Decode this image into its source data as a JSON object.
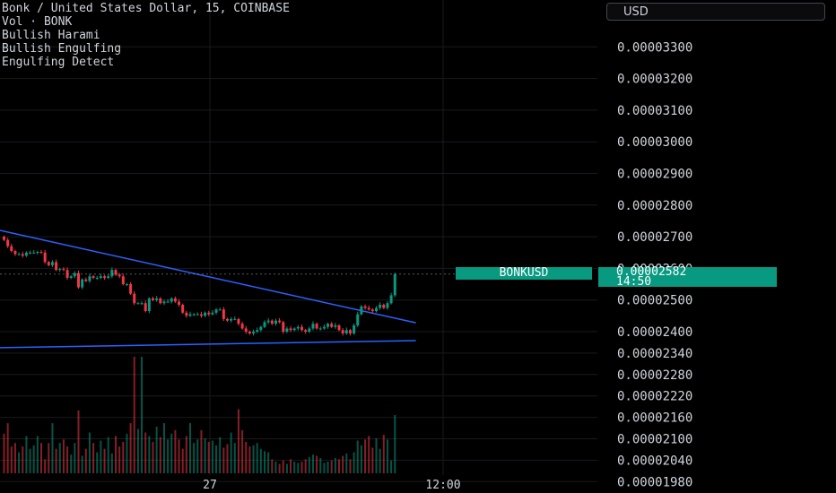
{
  "legend": {
    "title": "Bonk / United States Dollar, 15, COINBASE",
    "lines": [
      "Vol · BONK",
      "Bullish Harami",
      "Bullish Engulfing",
      "Engulfing Detect"
    ]
  },
  "currency_button": "USD",
  "last_price": {
    "symbol": "BONKUSD",
    "value": "0.00002582",
    "countdown": "14:50"
  },
  "colors": {
    "up": "#089981",
    "down": "#f23645",
    "trendline": "#2962ff",
    "text": "#d1d4dc"
  },
  "chart_data": {
    "type": "candlestick",
    "x_labels": [
      "27",
      "12:00"
    ],
    "y_tick_labels": [
      "0.00003300",
      "0.00003200",
      "0.00003100",
      "0.00003000",
      "0.00002900",
      "0.00002800",
      "0.00002700",
      "0.00002600",
      "0.00002500",
      "0.00002400",
      "0.00002340",
      "0.00002280",
      "0.00002220",
      "0.00002160",
      "0.00002100",
      "0.00002040",
      "0.00001980"
    ],
    "close": [
      2.69e-05,
      2.67e-05,
      2.655e-05,
      2.645e-05,
      2.645e-05,
      2.64e-05,
      2.65e-05,
      2.65e-05,
      2.65e-05,
      2.652e-05,
      2.65e-05,
      2.62e-05,
      2.61e-05,
      2.62e-05,
      2.595e-05,
      2.598e-05,
      2.595e-05,
      2.57e-05,
      2.575e-05,
      2.585e-05,
      2.54e-05,
      2.565e-05,
      2.56e-05,
      2.575e-05,
      2.57e-05,
      2.57e-05,
      2.575e-05,
      2.57e-05,
      2.575e-05,
      2.595e-05,
      2.58e-05,
      2.575e-05,
      2.55e-05,
      2.55e-05,
      2.52e-05,
      2.49e-05,
      2.49e-05,
      2.49e-05,
      2.465e-05,
      2.505e-05,
      2.5e-05,
      2.505e-05,
      2.49e-05,
      2.495e-05,
      2.495e-05,
      2.505e-05,
      2.495e-05,
      2.485e-05,
      2.46e-05,
      2.45e-05,
      2.455e-05,
      2.455e-05,
      2.455e-05,
      2.45e-05,
      2.46e-05,
      2.455e-05,
      2.46e-05,
      2.47e-05,
      2.47e-05,
      2.44e-05,
      2.435e-05,
      2.44e-05,
      2.44e-05,
      2.425e-05,
      2.41e-05,
      2.4e-05,
      2.395e-05,
      2.4e-05,
      2.405e-05,
      2.415e-05,
      2.43e-05,
      2.435e-05,
      2.425e-05,
      2.435e-05,
      2.43e-05,
      2.4e-05,
      2.41e-05,
      2.405e-05,
      2.41e-05,
      2.415e-05,
      2.405e-05,
      2.4e-05,
      2.41e-05,
      2.425e-05,
      2.41e-05,
      2.41e-05,
      2.415e-05,
      2.425e-05,
      2.415e-05,
      2.42e-05,
      2.405e-05,
      2.395e-05,
      2.405e-05,
      2.395e-05,
      2.42e-05,
      2.455e-05,
      2.48e-05,
      2.475e-05,
      2.47e-05,
      2.465e-05,
      2.475e-05,
      2.485e-05,
      2.475e-05,
      2.49e-05,
      2.515e-05,
      2.582e-05
    ],
    "volume": [
      0.34,
      0.43,
      0.23,
      0.26,
      0.18,
      0.23,
      0.32,
      0.21,
      0.24,
      0.32,
      0.26,
      0.12,
      0.26,
      0.43,
      0.21,
      0.26,
      0.29,
      0.23,
      0.16,
      0.26,
      0.54,
      0.15,
      0.21,
      0.35,
      0.26,
      0.18,
      0.28,
      0.21,
      0.31,
      0.17,
      0.32,
      0.23,
      0.27,
      0.34,
      0.43,
      1,
      0.38,
      1,
      0.35,
      0.32,
      0.27,
      0.4,
      0.31,
      0.43,
      0.29,
      0.34,
      0.37,
      0.29,
      0.21,
      0.32,
      0.43,
      0.26,
      0.29,
      0.37,
      0.3,
      0.27,
      0.28,
      0.24,
      0.31,
      0.22,
      0.25,
      0.35,
      0.26,
      0.55,
      0.37,
      0.27,
      0.23,
      0.24,
      0.26,
      0.21,
      0.19,
      0.18,
      0.12,
      0.1,
      0.08,
      0.11,
      0.08,
      0.12,
      0.1,
      0.09,
      0.1,
      0.12,
      0.14,
      0.16,
      0.15,
      0.13,
      0.09,
      0.1,
      0.11,
      0.13,
      0.12,
      0.15,
      0.17,
      0.12,
      0.18,
      0.28,
      0.24,
      0.29,
      0.32,
      0.22,
      0.3,
      0.21,
      0.33,
      0.29,
      0.11,
      0.5
    ],
    "trendlines": [
      {
        "from": [
          0,
          2.72e-05
        ],
        "to": [
          111,
          2.428e-05
        ]
      },
      {
        "from": [
          0,
          2.355e-05
        ],
        "to": [
          111,
          2.375e-05
        ]
      }
    ],
    "grid": true
  }
}
